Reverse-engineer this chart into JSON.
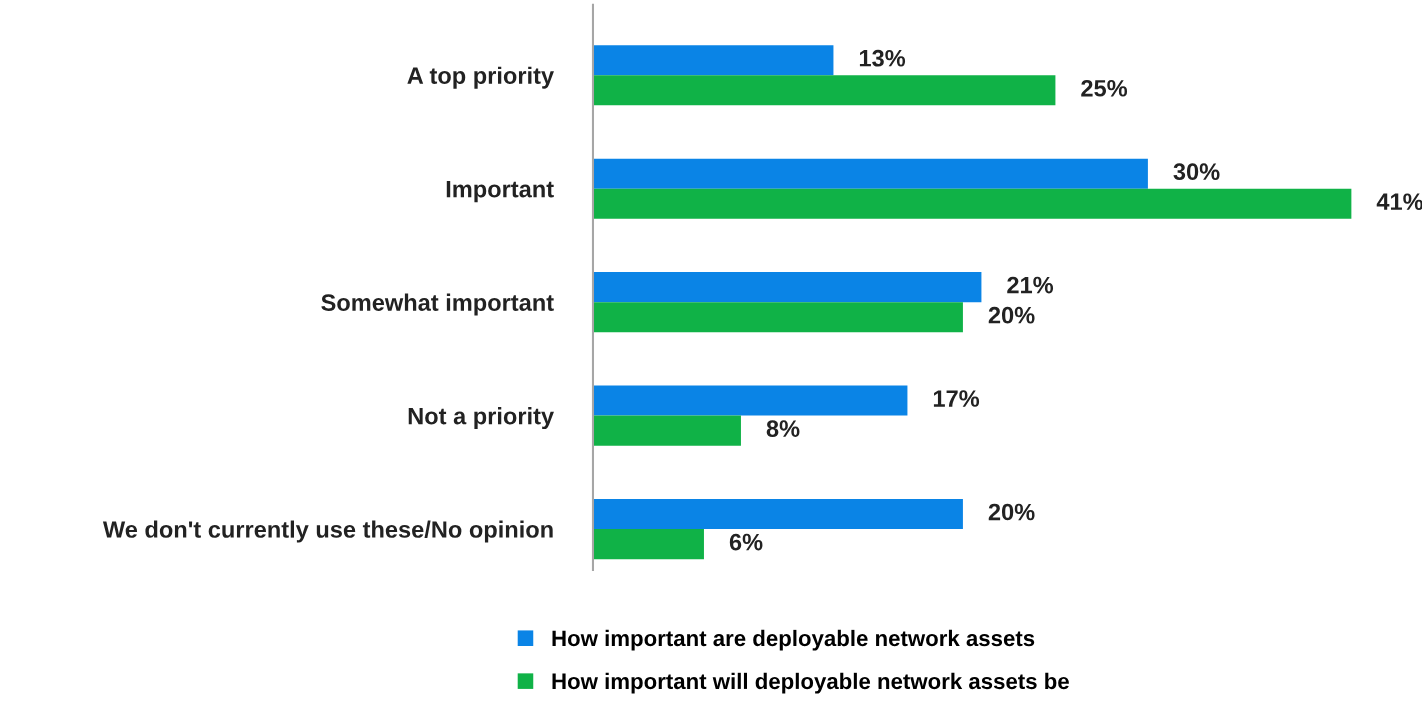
{
  "chart_data": {
    "type": "bar",
    "orientation": "horizontal",
    "categories": [
      "A top priority",
      "Important",
      "Somewhat important",
      "Not a priority",
      "We don't currently use these/No opinion"
    ],
    "series": [
      {
        "name": "How important are deployable network assets",
        "color": "#0a84e6",
        "values": [
          13,
          30,
          21,
          17,
          20
        ],
        "value_labels": [
          "13%",
          "30%",
          "21%",
          "17%",
          "20%"
        ]
      },
      {
        "name": "How important will deployable network assets be",
        "color": "#10b247",
        "values": [
          25,
          41,
          20,
          8,
          6
        ],
        "value_labels": [
          "25%",
          "41%",
          "20%",
          "8%",
          "6%"
        ]
      }
    ],
    "tick_labels": "y",
    "grid": false,
    "legend": "bottom"
  }
}
